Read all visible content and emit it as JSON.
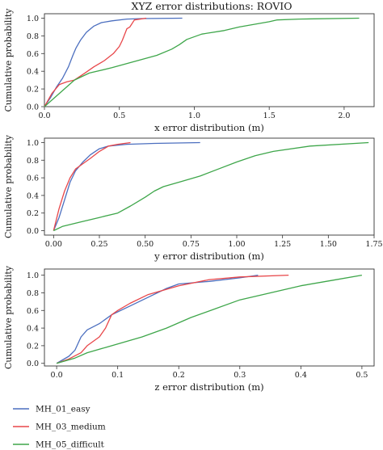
{
  "figure": {
    "title": "XYZ error distributions: ROVIO",
    "legend": {
      "placement": "bottom-left",
      "entries": [
        {
          "name": "MH_01_easy",
          "color": "#4c6fbf"
        },
        {
          "name": "MH_03_medium",
          "color": "#e8474a"
        },
        {
          "name": "MH_05_difficult",
          "color": "#3ea64a"
        }
      ]
    }
  },
  "chart_data": [
    {
      "type": "line",
      "title": "XYZ error distributions: ROVIO",
      "xlabel": "x error distribution (m)",
      "ylabel": "Cumulative probability",
      "xlim": [
        0,
        2.2
      ],
      "ylim": [
        0,
        1.05
      ],
      "xticks": [
        "0.0",
        "0.5",
        "1.0",
        "1.5",
        "2.0"
      ],
      "xtick_values": [
        0,
        0.5,
        1.0,
        1.5,
        2.0
      ],
      "yticks": [
        "0.0",
        "0.2",
        "0.4",
        "0.6",
        "0.8",
        "1.0"
      ],
      "ytick_values": [
        0,
        0.2,
        0.4,
        0.6,
        0.8,
        1.0
      ],
      "grid": false,
      "series": [
        {
          "name": "MH_01_easy",
          "color": "#4c6fbf",
          "x": [
            0.0,
            0.04,
            0.08,
            0.12,
            0.16,
            0.19,
            0.21,
            0.24,
            0.28,
            0.33,
            0.38,
            0.45,
            0.55,
            0.65,
            0.92
          ],
          "y": [
            0.0,
            0.1,
            0.22,
            0.32,
            0.45,
            0.58,
            0.66,
            0.75,
            0.84,
            0.91,
            0.95,
            0.97,
            0.99,
            0.995,
            1.0
          ]
        },
        {
          "name": "MH_03_medium",
          "color": "#e8474a",
          "x": [
            0.0,
            0.05,
            0.1,
            0.15,
            0.2,
            0.27,
            0.33,
            0.4,
            0.46,
            0.5,
            0.52,
            0.55,
            0.57,
            0.6,
            0.68
          ],
          "y": [
            0.0,
            0.15,
            0.25,
            0.28,
            0.3,
            0.38,
            0.45,
            0.52,
            0.6,
            0.68,
            0.75,
            0.88,
            0.9,
            0.98,
            1.0
          ]
        },
        {
          "name": "MH_05_difficult",
          "color": "#3ea64a",
          "x": [
            0.0,
            0.1,
            0.2,
            0.3,
            0.45,
            0.6,
            0.75,
            0.85,
            0.9,
            0.95,
            1.05,
            1.2,
            1.3,
            1.5,
            1.55,
            1.7,
            2.1
          ],
          "y": [
            0.0,
            0.15,
            0.3,
            0.38,
            0.44,
            0.51,
            0.58,
            0.65,
            0.7,
            0.76,
            0.82,
            0.86,
            0.9,
            0.96,
            0.98,
            0.99,
            1.0
          ]
        }
      ]
    },
    {
      "type": "line",
      "xlabel": "y error distribution (m)",
      "ylabel": "Cumulative probability",
      "xlim": [
        -0.05,
        1.75
      ],
      "ylim": [
        -0.05,
        1.05
      ],
      "xticks": [
        "0.00",
        "0.25",
        "0.50",
        "0.75",
        "1.00",
        "1.25",
        "1.50",
        "1.75"
      ],
      "xtick_values": [
        0,
        0.25,
        0.5,
        0.75,
        1.0,
        1.25,
        1.5,
        1.75
      ],
      "yticks": [
        "0.0",
        "0.2",
        "0.4",
        "0.6",
        "0.8",
        "1.0"
      ],
      "ytick_values": [
        0,
        0.2,
        0.4,
        0.6,
        0.8,
        1.0
      ],
      "grid": false,
      "series": [
        {
          "name": "MH_01_easy",
          "color": "#4c6fbf",
          "x": [
            0.0,
            0.03,
            0.06,
            0.09,
            0.12,
            0.16,
            0.2,
            0.25,
            0.3,
            0.4,
            0.55,
            0.8
          ],
          "y": [
            0.0,
            0.15,
            0.35,
            0.55,
            0.68,
            0.78,
            0.86,
            0.93,
            0.96,
            0.98,
            0.99,
            1.0
          ]
        },
        {
          "name": "MH_03_medium",
          "color": "#e8474a",
          "x": [
            0.0,
            0.03,
            0.06,
            0.09,
            0.12,
            0.16,
            0.2,
            0.25,
            0.3,
            0.35,
            0.42
          ],
          "y": [
            0.0,
            0.25,
            0.45,
            0.6,
            0.7,
            0.76,
            0.82,
            0.9,
            0.96,
            0.98,
            1.0
          ]
        },
        {
          "name": "MH_05_difficult",
          "color": "#3ea64a",
          "x": [
            0.0,
            0.05,
            0.15,
            0.25,
            0.35,
            0.42,
            0.5,
            0.55,
            0.6,
            0.7,
            0.8,
            0.9,
            1.0,
            1.1,
            1.2,
            1.4,
            1.72
          ],
          "y": [
            0.0,
            0.05,
            0.1,
            0.15,
            0.2,
            0.28,
            0.38,
            0.45,
            0.5,
            0.56,
            0.62,
            0.7,
            0.78,
            0.85,
            0.9,
            0.96,
            1.0
          ]
        }
      ]
    },
    {
      "type": "line",
      "xlabel": "z error distribution (m)",
      "ylabel": "Cumulative probability",
      "xlim": [
        -0.02,
        0.52
      ],
      "ylim": [
        -0.03,
        1.07
      ],
      "xticks": [
        "0.0",
        "0.1",
        "0.2",
        "0.3",
        "0.4",
        "0.5"
      ],
      "xtick_values": [
        0,
        0.1,
        0.2,
        0.3,
        0.4,
        0.5
      ],
      "yticks": [
        "0.0",
        "0.2",
        "0.4",
        "0.6",
        "0.8",
        "1.0"
      ],
      "ytick_values": [
        0,
        0.2,
        0.4,
        0.6,
        0.8,
        1.0
      ],
      "grid": false,
      "series": [
        {
          "name": "MH_01_easy",
          "color": "#4c6fbf",
          "x": [
            0.0,
            0.02,
            0.03,
            0.04,
            0.05,
            0.07,
            0.09,
            0.12,
            0.15,
            0.18,
            0.2,
            0.25,
            0.3,
            0.33
          ],
          "y": [
            0.0,
            0.08,
            0.15,
            0.3,
            0.38,
            0.45,
            0.55,
            0.65,
            0.75,
            0.85,
            0.9,
            0.93,
            0.97,
            1.0
          ]
        },
        {
          "name": "MH_03_medium",
          "color": "#e8474a",
          "x": [
            0.0,
            0.02,
            0.04,
            0.05,
            0.07,
            0.08,
            0.09,
            0.1,
            0.12,
            0.15,
            0.2,
            0.25,
            0.3,
            0.38
          ],
          "y": [
            0.0,
            0.05,
            0.12,
            0.2,
            0.3,
            0.4,
            0.55,
            0.6,
            0.68,
            0.78,
            0.88,
            0.95,
            0.98,
            1.0
          ]
        },
        {
          "name": "MH_05_difficult",
          "color": "#3ea64a",
          "x": [
            0.0,
            0.03,
            0.05,
            0.08,
            0.1,
            0.14,
            0.18,
            0.22,
            0.26,
            0.3,
            0.35,
            0.4,
            0.45,
            0.5
          ],
          "y": [
            0.0,
            0.06,
            0.12,
            0.18,
            0.22,
            0.3,
            0.4,
            0.52,
            0.62,
            0.72,
            0.8,
            0.88,
            0.94,
            1.0
          ]
        }
      ]
    }
  ]
}
